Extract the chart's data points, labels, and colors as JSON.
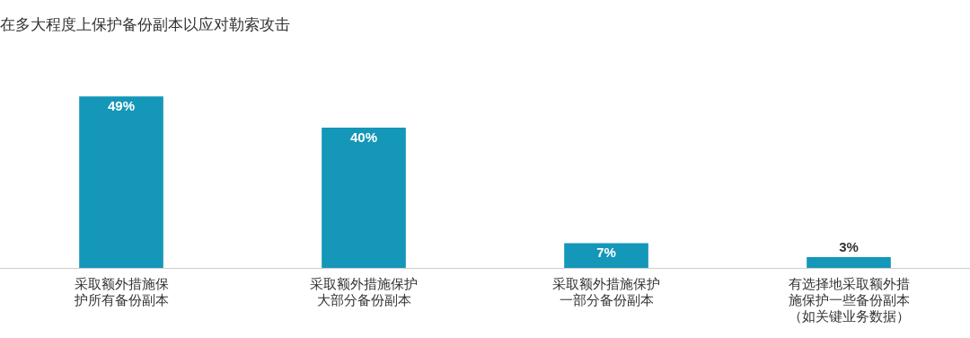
{
  "chart_data": {
    "type": "bar",
    "title": "在多大程度上保护备份副本以应对勒索攻击",
    "categories": [
      "采取额外措施保护所有备份副本",
      "采取额外措施保护大部分备份副本",
      "采取额外措施保护一部分备份副本",
      "有选择地采取额外措施保护一些备份副本（如关键业务数据）"
    ],
    "values": [
      49,
      40,
      7,
      3
    ],
    "color": "#1497b8",
    "data_labels": true,
    "value_labels": [
      "49%",
      "40%",
      "7%",
      "3%"
    ],
    "grid": false,
    "legend": false
  }
}
